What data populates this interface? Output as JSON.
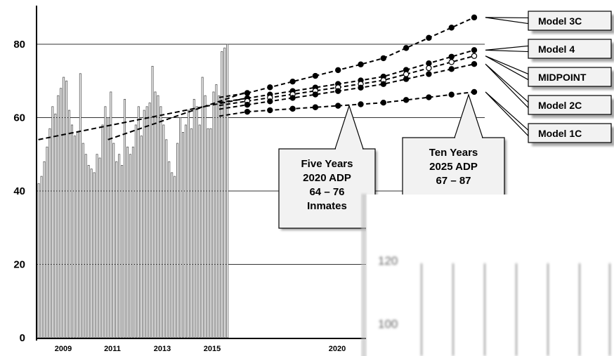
{
  "chart_data": {
    "type": "bar",
    "title": "",
    "xlabel": "",
    "ylabel": "",
    "ylim": [
      0,
      88
    ],
    "y_ticks": [
      0,
      20,
      40,
      60,
      80
    ],
    "grid": "horizontal",
    "x_ticks": [
      "2009",
      "2011",
      "2013",
      "2015",
      "2020"
    ],
    "monthly_adp": [
      42,
      44,
      48,
      52,
      57,
      63,
      61,
      66,
      68,
      71,
      70,
      62,
      58,
      55,
      56,
      72,
      53,
      50,
      47,
      46,
      45,
      50,
      49,
      58,
      63,
      60,
      67,
      53,
      48,
      50,
      47,
      65,
      52,
      50,
      52,
      58,
      63,
      55,
      62,
      63,
      64,
      74,
      67,
      66,
      63,
      58,
      54,
      48,
      45,
      44,
      53,
      60,
      56,
      58,
      62,
      57,
      65,
      63,
      58,
      71,
      66,
      57,
      57,
      67,
      69,
      66,
      78,
      79,
      80
    ],
    "projections": [
      {
        "name": "Model 3C",
        "y2016": 66.7,
        "y2020": 75.9,
        "y2025": 87.3,
        "marker": "filled"
      },
      {
        "name": "Model 4",
        "y2016": 65.3,
        "y2020": 71.0,
        "y2025": 78.4,
        "marker": "filled"
      },
      {
        "name": "MIDPOINT",
        "y2016": 64.5,
        "y2020": 70.0,
        "y2025": 76.8,
        "marker": "open"
      },
      {
        "name": "Model 2C",
        "y2016": 63.5,
        "y2020": 69.0,
        "y2025": 74.6,
        "marker": "filled"
      },
      {
        "name": "Model 1C",
        "y2016": 61.6,
        "y2020": 64.0,
        "y2025": 67.0,
        "marker": "filled"
      }
    ],
    "trend_lines": [
      {
        "from": [
          2008.0,
          54
        ],
        "to": [
          2016.3,
          65.2
        ]
      },
      {
        "from": [
          2010.8,
          54
        ],
        "to": [
          2016.3,
          66.8
        ]
      }
    ],
    "callouts": [
      {
        "lines": [
          "Five Years",
          "2020 ADP",
          "64 – 76",
          "Inmates"
        ],
        "anchor_year": 2020,
        "anchor_value": 64
      },
      {
        "lines": [
          "Ten Years",
          "2025 ADP",
          "67 – 87"
        ],
        "anchor_year": 2025,
        "anchor_value": 67
      }
    ],
    "inset_y_ticks": [
      "120",
      "100"
    ]
  }
}
